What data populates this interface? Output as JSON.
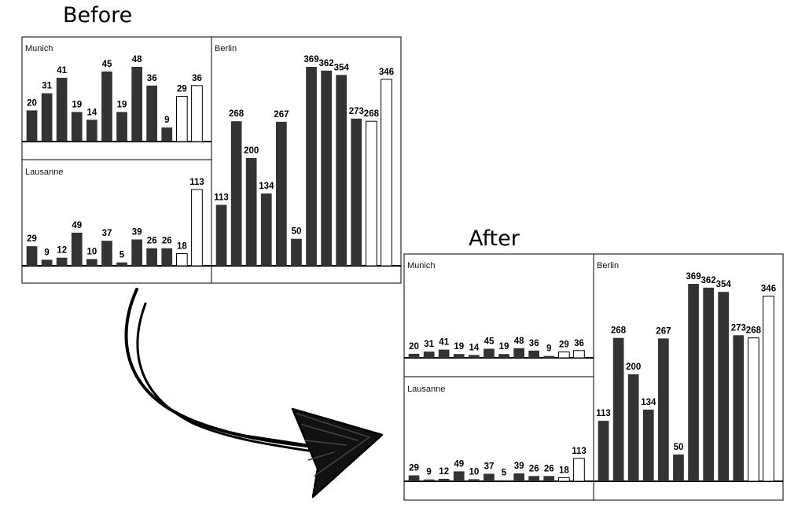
{
  "headings": {
    "before": "Before",
    "after": "After"
  },
  "colors": {
    "bar_fill": "#333333",
    "open_bar_fill": "#ffffff",
    "stroke": "#000000"
  },
  "chart_data": [
    {
      "type": "bar",
      "view": "before",
      "scale": "independent",
      "panels": [
        {
          "title": "Munich",
          "values": [
            20,
            31,
            41,
            19,
            14,
            45,
            19,
            48,
            36,
            9,
            29,
            36
          ],
          "open": [
            false,
            false,
            false,
            false,
            false,
            false,
            false,
            false,
            false,
            false,
            true,
            true
          ]
        },
        {
          "title": "Lausanne",
          "values": [
            29,
            9,
            12,
            49,
            10,
            37,
            5,
            39,
            26,
            26,
            18,
            113
          ],
          "open": [
            false,
            false,
            false,
            false,
            false,
            false,
            false,
            false,
            false,
            false,
            true,
            true
          ]
        },
        {
          "title": "Berlin",
          "values": [
            113,
            268,
            200,
            134,
            267,
            50,
            369,
            362,
            354,
            273,
            268,
            346
          ],
          "open": [
            false,
            false,
            false,
            false,
            false,
            false,
            false,
            false,
            false,
            false,
            true,
            true
          ]
        }
      ]
    },
    {
      "type": "bar",
      "view": "after",
      "scale": "shared",
      "panels": [
        {
          "title": "Munich",
          "values": [
            20,
            31,
            41,
            19,
            14,
            45,
            19,
            48,
            36,
            9,
            29,
            36
          ],
          "open": [
            false,
            false,
            false,
            false,
            false,
            false,
            false,
            false,
            false,
            false,
            true,
            true
          ]
        },
        {
          "title": "Lausanne",
          "values": [
            29,
            9,
            12,
            49,
            10,
            37,
            5,
            39,
            26,
            26,
            18,
            113
          ],
          "open": [
            false,
            false,
            false,
            false,
            false,
            false,
            false,
            false,
            false,
            false,
            true,
            true
          ]
        },
        {
          "title": "Berlin",
          "values": [
            113,
            268,
            200,
            134,
            267,
            50,
            369,
            362,
            354,
            273,
            268,
            346
          ],
          "open": [
            false,
            false,
            false,
            false,
            false,
            false,
            false,
            false,
            false,
            false,
            true,
            true
          ]
        }
      ]
    }
  ]
}
